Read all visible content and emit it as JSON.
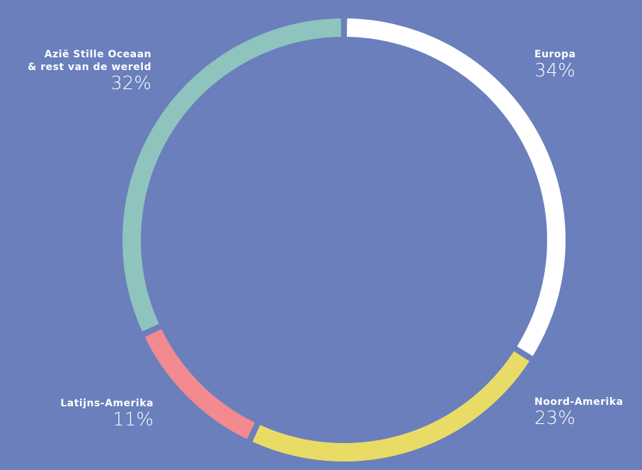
{
  "chart_data": {
    "type": "pie",
    "donut": true,
    "categories": [
      "Europa",
      "Noord-Amerika",
      "Latijns-Amerika",
      "Azië Stille Oceaan\n& rest van de wereld"
    ],
    "values": [
      34,
      23,
      11,
      32
    ],
    "value_labels": [
      "34%",
      "23%",
      "11%",
      "32%"
    ],
    "colors": [
      "#ffffff",
      "#e8dc66",
      "#f28a90",
      "#8ec4bd"
    ]
  }
}
